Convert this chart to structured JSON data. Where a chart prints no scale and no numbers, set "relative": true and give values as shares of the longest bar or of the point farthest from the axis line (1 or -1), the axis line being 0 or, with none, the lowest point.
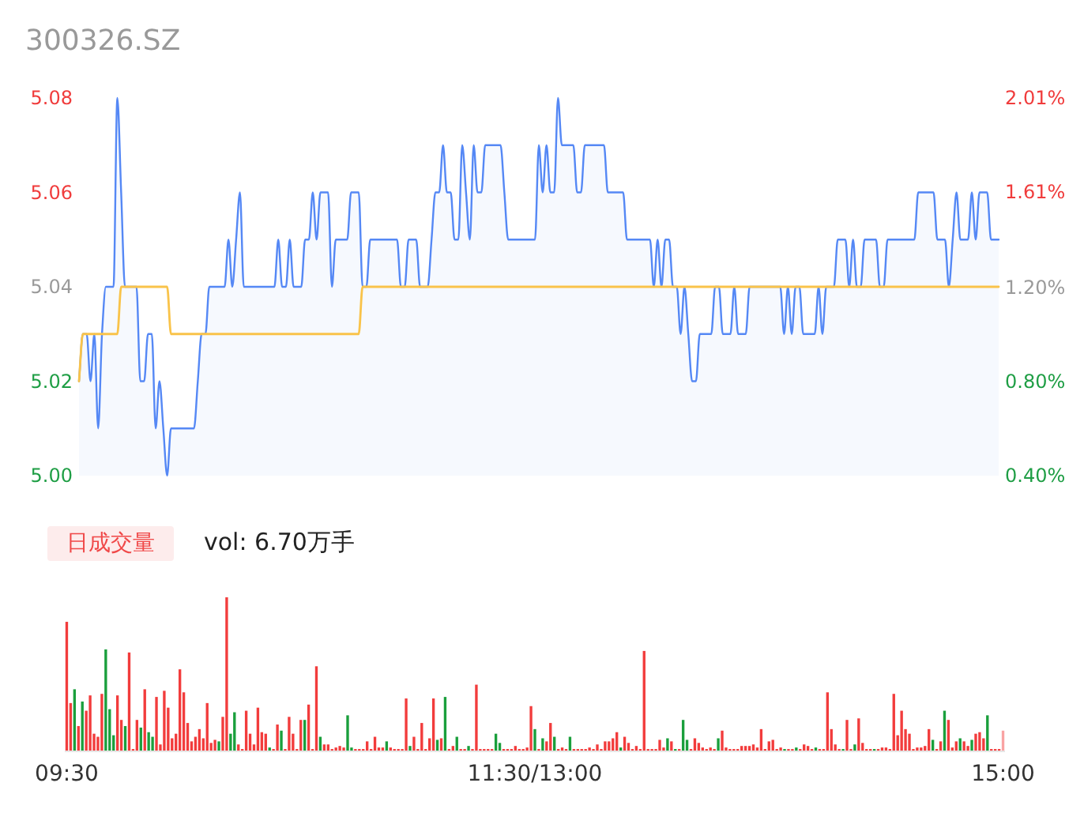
{
  "chart_data": [
    {
      "type": "line",
      "title": "300326.SZ",
      "categories": [
        null,
        null,
        null,
        null,
        null,
        null,
        null,
        null,
        null,
        null,
        null,
        null,
        null,
        null,
        null,
        null,
        null,
        null,
        null,
        null,
        null,
        null,
        null,
        null,
        null,
        null,
        null,
        null,
        null,
        null,
        null,
        null,
        null,
        null,
        null,
        null,
        null,
        null,
        null,
        null,
        null,
        null,
        null,
        null,
        null,
        null,
        null,
        null,
        null,
        null,
        null,
        null,
        null,
        null,
        null,
        null,
        null,
        null,
        null,
        null,
        null,
        null,
        null,
        null,
        null,
        null,
        null,
        null,
        null,
        null,
        null,
        null,
        null,
        null,
        null,
        null,
        null,
        null,
        null,
        null,
        null,
        null,
        null,
        null,
        null,
        null,
        null,
        null,
        null,
        null,
        null,
        null,
        null,
        null,
        null,
        null,
        null,
        null,
        null,
        null,
        null,
        null,
        null,
        null,
        null,
        null,
        null,
        null,
        null,
        null,
        null,
        null,
        null,
        null,
        null,
        null,
        null,
        null,
        null,
        null,
        null,
        null,
        null,
        null,
        null,
        null,
        null,
        null,
        null,
        null,
        null,
        null,
        null,
        null,
        null,
        null,
        null,
        null,
        null,
        null,
        null,
        null,
        null,
        null,
        null,
        null,
        null,
        null,
        null,
        null,
        null,
        null,
        null,
        null,
        null,
        null,
        null,
        null,
        null,
        null,
        null,
        null,
        null,
        null,
        null,
        null,
        null,
        null,
        null,
        null,
        null,
        null,
        null,
        null,
        null,
        null,
        null,
        null,
        null,
        null,
        null,
        null,
        null,
        null,
        null,
        null,
        null,
        null,
        null,
        null,
        null,
        null,
        null,
        null,
        null,
        null,
        null,
        null,
        null,
        null,
        null,
        null,
        null,
        null,
        null,
        null,
        null,
        null,
        null,
        null,
        null,
        null,
        null,
        null,
        null,
        null,
        null,
        null,
        null,
        null,
        null,
        null,
        null,
        null,
        null,
        null,
        null,
        null,
        null,
        null,
        null,
        null,
        null,
        null,
        null,
        null,
        null,
        null,
        null,
        null,
        null
      ],
      "ylim": [
        5.0,
        5.08
      ],
      "yticks": [
        {
          "value": 5.0,
          "label": "5.00"
        },
        5.02,
        5.04,
        5.06,
        5.08
      ],
      "y2lim": [
        0.4,
        2.01
      ],
      "y2ticks": [
        {
          "value": 0.4,
          "label": "0.40%"
        },
        {
          "value": 0.8,
          "label": "0.80%"
        },
        {
          "value": 1.2,
          "label": "1.20%"
        },
        {
          "value": 1.61,
          "label": "1.61%"
        },
        {
          "value": 2.01,
          "label": "2.01%"
        }
      ],
      "tick_labels": "y",
      "series": [
        {
          "type": "area",
          "color": "#5588f5",
          "values": [
            5.02,
            5.03,
            5.03,
            5.02,
            5.03,
            5.01,
            5.03,
            5.04,
            5.04,
            5.04,
            5.08,
            5.06,
            5.04,
            5.04,
            5.04,
            5.04,
            5.02,
            5.02,
            5.03,
            5.03,
            5.01,
            5.02,
            5.01,
            5.0,
            5.01,
            5.01,
            5.01,
            5.01,
            5.01,
            5.01,
            5.01,
            5.02,
            5.03,
            5.03,
            5.04,
            5.04,
            5.04,
            5.04,
            5.04,
            5.05,
            5.04,
            5.05,
            5.06,
            5.04,
            5.04,
            5.04,
            5.04,
            5.04,
            5.04,
            5.04,
            5.04,
            5.04,
            5.05,
            5.04,
            5.04,
            5.05,
            5.04,
            5.04,
            5.04,
            5.05,
            5.05,
            5.06,
            5.05,
            5.06,
            5.06,
            5.06,
            5.04,
            5.05,
            5.05,
            5.05,
            5.05,
            5.06,
            5.06,
            5.06,
            5.04,
            5.04,
            5.05,
            5.05,
            5.05,
            5.05,
            5.05,
            5.05,
            5.05,
            5.05,
            5.04,
            5.04,
            5.05,
            5.05,
            5.05,
            5.04,
            5.04,
            5.04,
            5.05,
            5.06,
            5.06,
            5.07,
            5.06,
            5.06,
            5.05,
            5.05,
            5.07,
            5.06,
            5.05,
            5.07,
            5.06,
            5.06,
            5.07,
            5.07,
            5.07,
            5.07,
            5.07,
            5.06,
            5.05,
            5.05,
            5.05,
            5.05,
            5.05,
            5.05,
            5.05,
            5.05,
            5.07,
            5.06,
            5.07,
            5.06,
            5.06,
            5.08,
            5.07,
            5.07,
            5.07,
            5.07,
            5.06,
            5.06,
            5.07,
            5.07,
            5.07,
            5.07,
            5.07,
            5.07,
            5.06,
            5.06,
            5.06,
            5.06,
            5.06,
            5.05,
            5.05,
            5.05,
            5.05,
            5.05,
            5.05,
            5.05,
            5.04,
            5.05,
            5.04,
            5.05,
            5.05,
            5.04,
            5.04,
            5.03,
            5.04,
            5.03,
            5.02,
            5.02,
            5.03,
            5.03,
            5.03,
            5.03,
            5.04,
            5.04,
            5.03,
            5.03,
            5.03,
            5.04,
            5.03,
            5.03,
            5.03,
            5.04,
            5.04,
            5.04,
            5.04,
            5.04,
            5.04,
            5.04,
            5.04,
            5.04,
            5.03,
            5.04,
            5.03,
            5.04,
            5.04,
            5.03,
            5.03,
            5.03,
            5.03,
            5.04,
            5.03,
            5.04,
            5.04,
            5.04,
            5.05,
            5.05,
            5.05,
            5.04,
            5.05,
            5.04,
            5.04,
            5.05,
            5.05,
            5.05,
            5.05,
            5.04,
            5.04,
            5.05,
            5.05,
            5.05,
            5.05,
            5.05,
            5.05,
            5.05,
            5.05,
            5.06,
            5.06,
            5.06,
            5.06,
            5.06,
            5.05,
            5.05,
            5.05,
            5.04,
            5.05,
            5.06,
            5.05,
            5.05,
            5.05,
            5.06,
            5.05,
            5.06,
            5.06,
            5.06,
            5.05,
            5.05,
            5.05
          ]
        },
        {
          "type": "line",
          "color": "#f9c34a",
          "values": [
            5.02,
            5.03,
            5.03,
            5.03,
            5.03,
            5.03,
            5.03,
            5.03,
            5.03,
            5.03,
            5.03,
            5.04,
            5.04,
            5.04,
            5.04,
            5.04,
            5.04,
            5.04,
            5.04,
            5.04,
            5.04,
            5.04,
            5.04,
            5.04,
            5.03,
            5.03,
            5.03,
            5.03,
            5.03,
            5.03,
            5.03,
            5.03,
            5.03,
            5.03,
            5.03,
            5.03,
            5.03,
            5.03,
            5.03,
            5.03,
            5.03,
            5.03,
            5.03,
            5.03,
            5.03,
            5.03,
            5.03,
            5.03,
            5.03,
            5.03,
            5.03,
            5.03,
            5.03,
            5.03,
            5.03,
            5.03,
            5.03,
            5.03,
            5.03,
            5.03,
            5.03,
            5.03,
            5.03,
            5.03,
            5.03,
            5.03,
            5.03,
            5.03,
            5.03,
            5.03,
            5.03,
            5.03,
            5.03,
            5.03,
            5.04,
            5.04,
            5.04,
            5.04,
            5.04,
            5.04,
            5.04,
            5.04,
            5.04,
            5.04,
            5.04,
            5.04,
            5.04,
            5.04,
            5.04,
            5.04,
            5.04,
            5.04,
            5.04,
            5.04,
            5.04,
            5.04,
            5.04,
            5.04,
            5.04,
            5.04,
            5.04,
            5.04,
            5.04,
            5.04,
            5.04,
            5.04,
            5.04,
            5.04,
            5.04,
            5.04,
            5.04,
            5.04,
            5.04,
            5.04,
            5.04,
            5.04,
            5.04,
            5.04,
            5.04,
            5.04,
            5.04,
            5.04,
            5.04,
            5.04,
            5.04,
            5.04,
            5.04,
            5.04,
            5.04,
            5.04,
            5.04,
            5.04,
            5.04,
            5.04,
            5.04,
            5.04,
            5.04,
            5.04,
            5.04,
            5.04,
            5.04,
            5.04,
            5.04,
            5.04,
            5.04,
            5.04,
            5.04,
            5.04,
            5.04,
            5.04,
            5.04,
            5.04,
            5.04,
            5.04,
            5.04,
            5.04,
            5.04,
            5.04,
            5.04,
            5.04,
            5.04,
            5.04,
            5.04,
            5.04,
            5.04,
            5.04,
            5.04,
            5.04,
            5.04,
            5.04,
            5.04,
            5.04,
            5.04,
            5.04,
            5.04,
            5.04,
            5.04,
            5.04,
            5.04,
            5.04,
            5.04,
            5.04,
            5.04,
            5.04,
            5.04,
            5.04,
            5.04,
            5.04,
            5.04,
            5.04,
            5.04,
            5.04,
            5.04,
            5.04,
            5.04,
            5.04,
            5.04,
            5.04,
            5.04,
            5.04,
            5.04,
            5.04,
            5.04,
            5.04,
            5.04,
            5.04,
            5.04,
            5.04,
            5.04,
            5.04,
            5.04,
            5.04,
            5.04,
            5.04,
            5.04,
            5.04,
            5.04,
            5.04,
            5.04,
            5.04,
            5.04,
            5.04,
            5.04,
            5.04,
            5.04,
            5.04,
            5.04,
            5.04,
            5.04,
            5.04,
            5.04,
            5.04,
            5.04,
            5.04,
            5.04,
            5.04,
            5.04,
            5.04,
            5.04,
            5.04,
            5.04
          ]
        }
      ]
    },
    {
      "type": "bar",
      "title": "日成交量",
      "subtitle": "vol: 6.70万手",
      "relative": true,
      "categories": [
        "09:30",
        null,
        null,
        null,
        null,
        null,
        null,
        null,
        null,
        null,
        null,
        null,
        null,
        null,
        null,
        null,
        null,
        null,
        null,
        null,
        null,
        null,
        null,
        null,
        null,
        null,
        null,
        null,
        null,
        null,
        null,
        null,
        null,
        null,
        null,
        null,
        null,
        null,
        null,
        null,
        null,
        null,
        null,
        null,
        null,
        null,
        null,
        null,
        null,
        null,
        null,
        null,
        null,
        null,
        null,
        null,
        null,
        null,
        null,
        null,
        null,
        null,
        null,
        null,
        null,
        null,
        null,
        null,
        null,
        null,
        null,
        null,
        null,
        null,
        null,
        null,
        null,
        null,
        null,
        null,
        null,
        null,
        null,
        null,
        null,
        null,
        null,
        null,
        null,
        null,
        null,
        null,
        null,
        null,
        null,
        null,
        null,
        null,
        null,
        null,
        null,
        null,
        null,
        null,
        null,
        null,
        null,
        null,
        null,
        null,
        null,
        null,
        null,
        null,
        null,
        null,
        null,
        null,
        null,
        null,
        "11:30/13:00",
        null,
        null,
        null,
        null,
        null,
        null,
        null,
        null,
        null,
        null,
        null,
        null,
        null,
        null,
        null,
        null,
        null,
        null,
        null,
        null,
        null,
        null,
        null,
        null,
        null,
        null,
        null,
        null,
        null,
        null,
        null,
        null,
        null,
        null,
        null,
        null,
        null,
        null,
        null,
        null,
        null,
        null,
        null,
        null,
        null,
        null,
        null,
        null,
        null,
        null,
        null,
        null,
        null,
        null,
        null,
        null,
        null,
        null,
        null,
        null,
        null,
        null,
        null,
        null,
        null,
        null,
        null,
        null,
        null,
        null,
        null,
        null,
        null,
        null,
        null,
        null,
        null,
        null,
        null,
        null,
        null,
        null,
        null,
        null,
        null,
        null,
        null,
        null,
        null,
        null,
        null,
        null,
        null,
        null,
        null,
        null,
        null,
        null,
        null,
        null,
        null,
        null,
        null,
        null,
        null,
        null,
        null,
        null,
        null,
        null,
        null,
        null,
        null,
        null,
        null,
        null,
        null,
        null,
        null,
        "15:00"
      ],
      "values": [
        0.84,
        0.31,
        0.4,
        0.16,
        0.32,
        0.26,
        0.36,
        0.11,
        0.09,
        0.37,
        0.66,
        0.27,
        0.1,
        0.36,
        0.2,
        0.16,
        0.64,
        0.01,
        0.2,
        0.15,
        0.4,
        0.12,
        0.09,
        0.35,
        0.04,
        0.39,
        0.28,
        0.08,
        0.11,
        0.53,
        0.38,
        0.18,
        0.06,
        0.09,
        0.14,
        0.08,
        0.31,
        0.05,
        0.07,
        0.06,
        0.22,
        1,
        0.11,
        0.25,
        0.04,
        0.01,
        0.26,
        0.11,
        0.04,
        0.28,
        0.12,
        0.11,
        0.02,
        0.01,
        0.17,
        0.13,
        0.01,
        0.22,
        0.11,
        0.01,
        0.2,
        0.2,
        0.3,
        0.01,
        0.55,
        0.09,
        0.04,
        0.04,
        0.01,
        0.02,
        0.03,
        0.02,
        0.23,
        0.02,
        0.01,
        0.01,
        0.01,
        0.06,
        0.01,
        0.09,
        0.02,
        0.02,
        0.06,
        0.02,
        0.01,
        0.01,
        0.01,
        0.34,
        0.03,
        0.09,
        0.01,
        0.18,
        0.01,
        0.08,
        0.34,
        0.07,
        0.08,
        0.35,
        0.01,
        0.03,
        0.09,
        0.01,
        0.01,
        0.03,
        0.01,
        0.43,
        0.01,
        0.01,
        0.01,
        0.01,
        0.11,
        0.05,
        0.01,
        0.01,
        0.01,
        0.03,
        0.01,
        0.01,
        0.02,
        0.29,
        0.14,
        0.01,
        0.08,
        0.06,
        0.18,
        0.09,
        0.01,
        0.02,
        0.01,
        0.09,
        0.01,
        0.01,
        0.01,
        0.01,
        0.02,
        0.01,
        0.04,
        0.01,
        0.06,
        0.06,
        0.08,
        0.12,
        0.02,
        0.09,
        0.05,
        0.01,
        0.03,
        0.01,
        0.65,
        0.01,
        0.01,
        0.01,
        0.07,
        0.02,
        0.08,
        0.06,
        0.01,
        0.01,
        0.2,
        0.07,
        0.01,
        0.08,
        0.05,
        0.02,
        0.01,
        0.02,
        0.01,
        0.08,
        0.13,
        0.02,
        0.01,
        0.01,
        0.01,
        0.03,
        0.03,
        0.03,
        0.04,
        0.02,
        0.14,
        0.01,
        0.06,
        0.07,
        0.01,
        0.02,
        0.01,
        0.01,
        0.01,
        0.02,
        0.01,
        0.04,
        0.03,
        0.01,
        0.02,
        0.01,
        0.01,
        0.38,
        0.14,
        0.04,
        0.01,
        0.01,
        0.2,
        0.01,
        0.04,
        0.21,
        0.05,
        0.01,
        0.01,
        0.01,
        0.01,
        0.02,
        0.02,
        0.01,
        0.37,
        0.1,
        0.26,
        0.14,
        0.11,
        0.01,
        0.02,
        0.02,
        0.03,
        0.14,
        0.07,
        0.01,
        0.06,
        0.26,
        0.2,
        0.02,
        0.06,
        0.08,
        0.06,
        0.03,
        0.07,
        0.11,
        0.12,
        0.08,
        0.23,
        0.01,
        0.01,
        0.01,
        0.13
      ],
      "colors": [
        "#f23c3c",
        "#f23c3c",
        "#1a9f3c",
        "#f23c3c",
        "#1a9f3c",
        "#f23c3c",
        "#f23c3c",
        "#f23c3c",
        "#f23c3c",
        "#f23c3c",
        "#1a9f3c",
        "#1a9f3c",
        "#1a9f3c",
        "#f23c3c",
        "#f23c3c",
        "#1a9f3c",
        "#f23c3c",
        "#f23c3c",
        "#f23c3c",
        "#1a9f3c",
        "#f23c3c",
        "#1a9f3c",
        "#1a9f3c",
        "#f23c3c",
        "#f23c3c",
        "#f23c3c",
        "#f23c3c",
        "#f23c3c",
        "#f23c3c",
        "#f23c3c",
        "#f23c3c",
        "#f23c3c",
        "#f23c3c",
        "#f23c3c",
        "#f23c3c",
        "#f23c3c",
        "#f23c3c",
        "#f23c3c",
        "#f23c3c",
        "#1a9f3c",
        "#f23c3c",
        "#f23c3c",
        "#1a9f3c",
        "#1a9f3c",
        "#f23c3c",
        "#f23c3c",
        "#f23c3c",
        "#f23c3c",
        "#f23c3c",
        "#f23c3c",
        "#f23c3c",
        "#f23c3c",
        "#1a9f3c",
        "#f23c3c",
        "#f23c3c",
        "#1a9f3c",
        "#f23c3c",
        "#f23c3c",
        "#f23c3c",
        "#f23c3c",
        "#f23c3c",
        "#1a9f3c",
        "#f23c3c",
        "#f23c3c",
        "#f23c3c",
        "#1a9f3c",
        "#f23c3c",
        "#f23c3c",
        "#f23c3c",
        "#f23c3c",
        "#f23c3c",
        "#f23c3c",
        "#1a9f3c",
        "#1a9f3c",
        "#f23c3c",
        "#f23c3c",
        "#f23c3c",
        "#f23c3c",
        "#f23c3c",
        "#f23c3c",
        "#f23c3c",
        "#f23c3c",
        "#1a9f3c",
        "#f23c3c",
        "#f23c3c",
        "#f23c3c",
        "#f23c3c",
        "#f23c3c",
        "#1a9f3c",
        "#f23c3c",
        "#f23c3c",
        "#f23c3c",
        "#f23c3c",
        "#f23c3c",
        "#f23c3c",
        "#1a9f3c",
        "#f23c3c",
        "#1a9f3c",
        "#f23c3c",
        "#f23c3c",
        "#1a9f3c",
        "#f23c3c",
        "#f23c3c",
        "#1a9f3c",
        "#f23c3c",
        "#f23c3c",
        "#f23c3c",
        "#f23c3c",
        "#f23c3c",
        "#f23c3c",
        "#1a9f3c",
        "#1a9f3c",
        "#f23c3c",
        "#f23c3c",
        "#f23c3c",
        "#f23c3c",
        "#f23c3c",
        "#f23c3c",
        "#f23c3c",
        "#f23c3c",
        "#1a9f3c",
        "#f23c3c",
        "#1a9f3c",
        "#f23c3c",
        "#f23c3c",
        "#1a9f3c",
        "#f23c3c",
        "#f23c3c",
        "#f23c3c",
        "#1a9f3c",
        "#f23c3c",
        "#f23c3c",
        "#f23c3c",
        "#f23c3c",
        "#f23c3c",
        "#f23c3c",
        "#f23c3c",
        "#f23c3c",
        "#f23c3c",
        "#f23c3c",
        "#f23c3c",
        "#f23c3c",
        "#1a9f3c",
        "#f23c3c",
        "#f23c3c",
        "#f23c3c",
        "#f23c3c",
        "#f23c3c",
        "#f23c3c",
        "#f23c3c",
        "#f23c3c",
        "#f23c3c",
        "#f23c3c",
        "#f23c3c",
        "#1a9f3c",
        "#f23c3c",
        "#1a9f3c",
        "#f23c3c",
        "#1a9f3c",
        "#1a9f3c",
        "#f23c3c",
        "#f23c3c",
        "#f23c3c",
        "#f23c3c",
        "#f23c3c",
        "#f23c3c",
        "#f23c3c",
        "#1a9f3c",
        "#f23c3c",
        "#f23c3c",
        "#f23c3c",
        "#f23c3c",
        "#f23c3c",
        "#f23c3c",
        "#f23c3c",
        "#f23c3c",
        "#f23c3c",
        "#f23c3c",
        "#f23c3c",
        "#f23c3c",
        "#f23c3c",
        "#f23c3c",
        "#f23c3c",
        "#f23c3c",
        "#1a9f3c",
        "#f23c3c",
        "#f23c3c",
        "#1a9f3c",
        "#f23c3c",
        "#f23c3c",
        "#f23c3c",
        "#f23c3c",
        "#1a9f3c",
        "#f23c3c",
        "#f23c3c",
        "#f23c3c",
        "#f23c3c",
        "#f23c3c",
        "#f23c3c",
        "#1a9f3c",
        "#f23c3c",
        "#f23c3c",
        "#1a9f3c",
        "#f23c3c",
        "#f23c3c",
        "#f23c3c",
        "#f23c3c",
        "#1a9f3c",
        "#f23c3c",
        "#f23c3c",
        "#f23c3c",
        "#f23c3c",
        "#f23c3c",
        "#f23c3c",
        "#f23c3c",
        "#f23c3c",
        "#f23c3c",
        "#f23c3c",
        "#f23c3c",
        "#f23c3c",
        "#f23c3c",
        "#f23c3c",
        "#1a9f3c",
        "#f23c3c",
        "#f23c3c",
        "#1a9f3c",
        "#f23c3c",
        "#f23c3c",
        "#f23c3c",
        "#1a9f3c",
        "#f23c3c",
        "#f23c3c",
        "#1a9f3c",
        "#f23c3c",
        "#f23c3c",
        "#f23c3c",
        "#1a9f3c",
        "#f23c3c",
        "#f23c3c",
        "#f23c3c",
        "#f9a3a3"
      ]
    }
  ]
}
